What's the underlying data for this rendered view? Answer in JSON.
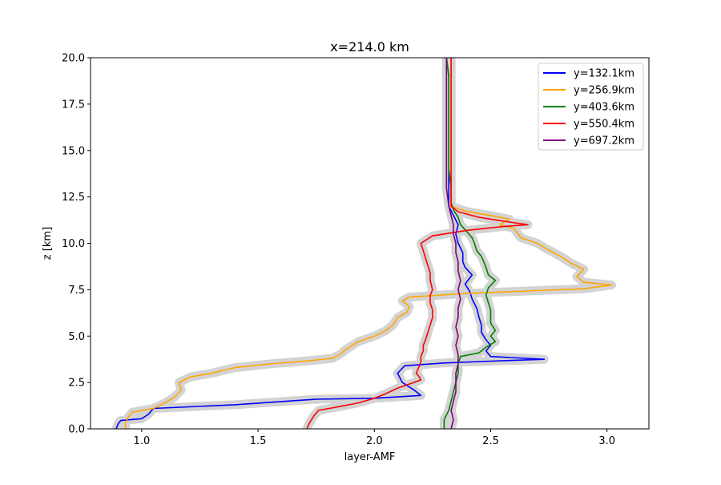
{
  "chart_data": {
    "type": "line",
    "title": "x=214.0 km",
    "xlabel": "layer-AMF",
    "ylabel": "z [km]",
    "xlim": [
      0.78,
      3.18
    ],
    "ylim": [
      0,
      20
    ],
    "xticks": [
      1.0,
      1.5,
      2.0,
      2.5,
      3.0
    ],
    "xtick_labels": [
      "1.0",
      "1.5",
      "2.0",
      "2.5",
      "3.0"
    ],
    "yticks": [
      0,
      2.5,
      5,
      7.5,
      10,
      12.5,
      15,
      17.5,
      20
    ],
    "ytick_labels": [
      "0.0",
      "2.5",
      "5.0",
      "7.5",
      "10.0",
      "12.5",
      "15.0",
      "17.5",
      "20.0"
    ],
    "grid": false,
    "legend_position": "top-right",
    "uncertainty_band_color": "#d3d3d3",
    "series": [
      {
        "name": "y=132.1km",
        "color": "#0000ff",
        "points": [
          [
            0.89,
            0.0
          ],
          [
            0.9,
            0.3
          ],
          [
            0.91,
            0.45
          ],
          [
            1.0,
            0.55
          ],
          [
            1.03,
            0.8
          ],
          [
            1.05,
            1.1
          ],
          [
            1.4,
            1.3
          ],
          [
            1.75,
            1.6
          ],
          [
            2.0,
            1.65
          ],
          [
            2.2,
            1.8
          ],
          [
            2.17,
            2.1
          ],
          [
            2.12,
            2.5
          ],
          [
            2.1,
            3.0
          ],
          [
            2.13,
            3.4
          ],
          [
            2.3,
            3.55
          ],
          [
            2.5,
            3.65
          ],
          [
            2.73,
            3.75
          ],
          [
            2.5,
            3.9
          ],
          [
            2.48,
            4.2
          ],
          [
            2.5,
            4.5
          ],
          [
            2.48,
            4.8
          ],
          [
            2.46,
            5.2
          ],
          [
            2.46,
            5.6
          ],
          [
            2.45,
            6.0
          ],
          [
            2.44,
            6.5
          ],
          [
            2.42,
            7.0
          ],
          [
            2.41,
            7.4
          ],
          [
            2.39,
            7.8
          ],
          [
            2.42,
            8.3
          ],
          [
            2.39,
            8.7
          ],
          [
            2.38,
            9.0
          ],
          [
            2.38,
            9.5
          ],
          [
            2.36,
            10.0
          ],
          [
            2.35,
            10.5
          ],
          [
            2.36,
            11.0
          ],
          [
            2.34,
            11.5
          ],
          [
            2.32,
            12.0
          ],
          [
            2.32,
            13.0
          ],
          [
            2.32,
            14.0
          ],
          [
            2.32,
            15.0
          ],
          [
            2.32,
            16.0
          ],
          [
            2.32,
            17.0
          ],
          [
            2.32,
            18.0
          ],
          [
            2.32,
            19.0
          ],
          [
            2.31,
            20.0
          ]
        ]
      },
      {
        "name": "y=256.9km",
        "color": "#ffa500",
        "points": [
          [
            0.93,
            0.0
          ],
          [
            0.93,
            0.3
          ],
          [
            0.94,
            0.6
          ],
          [
            0.96,
            0.9
          ],
          [
            1.05,
            1.1
          ],
          [
            1.1,
            1.4
          ],
          [
            1.14,
            1.7
          ],
          [
            1.17,
            2.1
          ],
          [
            1.16,
            2.5
          ],
          [
            1.21,
            2.8
          ],
          [
            1.3,
            3.0
          ],
          [
            1.4,
            3.3
          ],
          [
            1.55,
            3.5
          ],
          [
            1.7,
            3.65
          ],
          [
            1.82,
            3.8
          ],
          [
            1.85,
            4.0
          ],
          [
            1.88,
            4.3
          ],
          [
            1.93,
            4.7
          ],
          [
            2.0,
            5.0
          ],
          [
            2.05,
            5.3
          ],
          [
            2.08,
            5.6
          ],
          [
            2.1,
            6.0
          ],
          [
            2.14,
            6.3
          ],
          [
            2.15,
            6.6
          ],
          [
            2.12,
            6.9
          ],
          [
            2.15,
            7.1
          ],
          [
            2.4,
            7.3
          ],
          [
            2.7,
            7.45
          ],
          [
            2.9,
            7.55
          ],
          [
            3.02,
            7.75
          ],
          [
            2.9,
            7.9
          ],
          [
            2.87,
            8.2
          ],
          [
            2.9,
            8.6
          ],
          [
            2.85,
            8.9
          ],
          [
            2.8,
            9.3
          ],
          [
            2.74,
            9.7
          ],
          [
            2.7,
            10.0
          ],
          [
            2.63,
            10.3
          ],
          [
            2.6,
            10.8
          ],
          [
            2.54,
            11.0
          ],
          [
            2.58,
            11.3
          ],
          [
            2.5,
            11.5
          ],
          [
            2.4,
            11.7
          ],
          [
            2.33,
            12.0
          ],
          [
            2.33,
            13.0
          ],
          [
            2.33,
            14.0
          ],
          [
            2.33,
            15.0
          ],
          [
            2.33,
            16.0
          ],
          [
            2.33,
            17.0
          ],
          [
            2.33,
            18.0
          ],
          [
            2.33,
            19.0
          ],
          [
            2.33,
            20.0
          ]
        ]
      },
      {
        "name": "y=403.6km",
        "color": "#008000",
        "points": [
          [
            2.3,
            0.0
          ],
          [
            2.3,
            0.5
          ],
          [
            2.32,
            1.0
          ],
          [
            2.33,
            1.5
          ],
          [
            2.34,
            2.0
          ],
          [
            2.35,
            2.5
          ],
          [
            2.36,
            3.0
          ],
          [
            2.36,
            3.5
          ],
          [
            2.37,
            3.9
          ],
          [
            2.45,
            4.1
          ],
          [
            2.48,
            4.4
          ],
          [
            2.52,
            4.7
          ],
          [
            2.5,
            5.0
          ],
          [
            2.52,
            5.3
          ],
          [
            2.5,
            5.7
          ],
          [
            2.5,
            6.0
          ],
          [
            2.5,
            6.4
          ],
          [
            2.49,
            6.8
          ],
          [
            2.48,
            7.2
          ],
          [
            2.49,
            7.6
          ],
          [
            2.52,
            8.0
          ],
          [
            2.49,
            8.3
          ],
          [
            2.48,
            8.7
          ],
          [
            2.47,
            9.0
          ],
          [
            2.46,
            9.3
          ],
          [
            2.44,
            9.6
          ],
          [
            2.43,
            10.0
          ],
          [
            2.42,
            10.3
          ],
          [
            2.4,
            10.6
          ],
          [
            2.37,
            11.0
          ],
          [
            2.36,
            11.4
          ],
          [
            2.34,
            11.8
          ],
          [
            2.33,
            12.2
          ],
          [
            2.33,
            13.0
          ],
          [
            2.32,
            14.0
          ],
          [
            2.32,
            15.0
          ],
          [
            2.32,
            16.0
          ],
          [
            2.32,
            17.0
          ],
          [
            2.32,
            18.0
          ],
          [
            2.32,
            19.0
          ],
          [
            2.31,
            20.0
          ]
        ]
      },
      {
        "name": "y=550.4km",
        "color": "#ff0000",
        "points": [
          [
            1.71,
            0.0
          ],
          [
            1.72,
            0.3
          ],
          [
            1.74,
            0.7
          ],
          [
            1.76,
            1.0
          ],
          [
            1.85,
            1.2
          ],
          [
            1.93,
            1.4
          ],
          [
            2.0,
            1.65
          ],
          [
            2.05,
            1.9
          ],
          [
            2.1,
            2.2
          ],
          [
            2.17,
            2.5
          ],
          [
            2.2,
            2.65
          ],
          [
            2.19,
            2.85
          ],
          [
            2.18,
            3.0
          ],
          [
            2.19,
            3.3
          ],
          [
            2.2,
            3.6
          ],
          [
            2.2,
            3.9
          ],
          [
            2.21,
            4.2
          ],
          [
            2.21,
            4.5
          ],
          [
            2.22,
            4.8
          ],
          [
            2.23,
            5.2
          ],
          [
            2.24,
            5.6
          ],
          [
            2.25,
            6.0
          ],
          [
            2.25,
            6.4
          ],
          [
            2.24,
            6.8
          ],
          [
            2.24,
            7.2
          ],
          [
            2.25,
            7.5
          ],
          [
            2.24,
            8.0
          ],
          [
            2.24,
            8.4
          ],
          [
            2.23,
            8.8
          ],
          [
            2.22,
            9.2
          ],
          [
            2.21,
            9.6
          ],
          [
            2.2,
            10.0
          ],
          [
            2.25,
            10.4
          ],
          [
            2.4,
            10.7
          ],
          [
            2.55,
            10.9
          ],
          [
            2.66,
            11.0
          ],
          [
            2.55,
            11.2
          ],
          [
            2.45,
            11.4
          ],
          [
            2.36,
            11.7
          ],
          [
            2.33,
            12.0
          ],
          [
            2.33,
            13.0
          ],
          [
            2.33,
            14.0
          ],
          [
            2.33,
            15.0
          ],
          [
            2.33,
            16.0
          ],
          [
            2.33,
            17.0
          ],
          [
            2.33,
            18.0
          ],
          [
            2.33,
            19.0
          ],
          [
            2.33,
            20.0
          ]
        ]
      },
      {
        "name": "y=697.2km",
        "color": "#800080",
        "points": [
          [
            2.33,
            0.0
          ],
          [
            2.34,
            0.5
          ],
          [
            2.33,
            1.0
          ],
          [
            2.34,
            1.5
          ],
          [
            2.35,
            2.0
          ],
          [
            2.35,
            2.5
          ],
          [
            2.35,
            3.0
          ],
          [
            2.36,
            3.5
          ],
          [
            2.36,
            4.0
          ],
          [
            2.35,
            4.5
          ],
          [
            2.36,
            5.0
          ],
          [
            2.35,
            5.5
          ],
          [
            2.36,
            6.0
          ],
          [
            2.36,
            6.5
          ],
          [
            2.37,
            7.0
          ],
          [
            2.36,
            7.5
          ],
          [
            2.37,
            8.0
          ],
          [
            2.36,
            8.5
          ],
          [
            2.36,
            9.0
          ],
          [
            2.35,
            9.5
          ],
          [
            2.35,
            10.0
          ],
          [
            2.34,
            10.5
          ],
          [
            2.34,
            11.0
          ],
          [
            2.33,
            11.5
          ],
          [
            2.32,
            12.0
          ],
          [
            2.31,
            13.0
          ],
          [
            2.31,
            14.0
          ],
          [
            2.31,
            15.0
          ],
          [
            2.31,
            16.0
          ],
          [
            2.31,
            17.0
          ],
          [
            2.31,
            18.0
          ],
          [
            2.31,
            19.0
          ],
          [
            2.31,
            20.0
          ]
        ]
      }
    ]
  }
}
